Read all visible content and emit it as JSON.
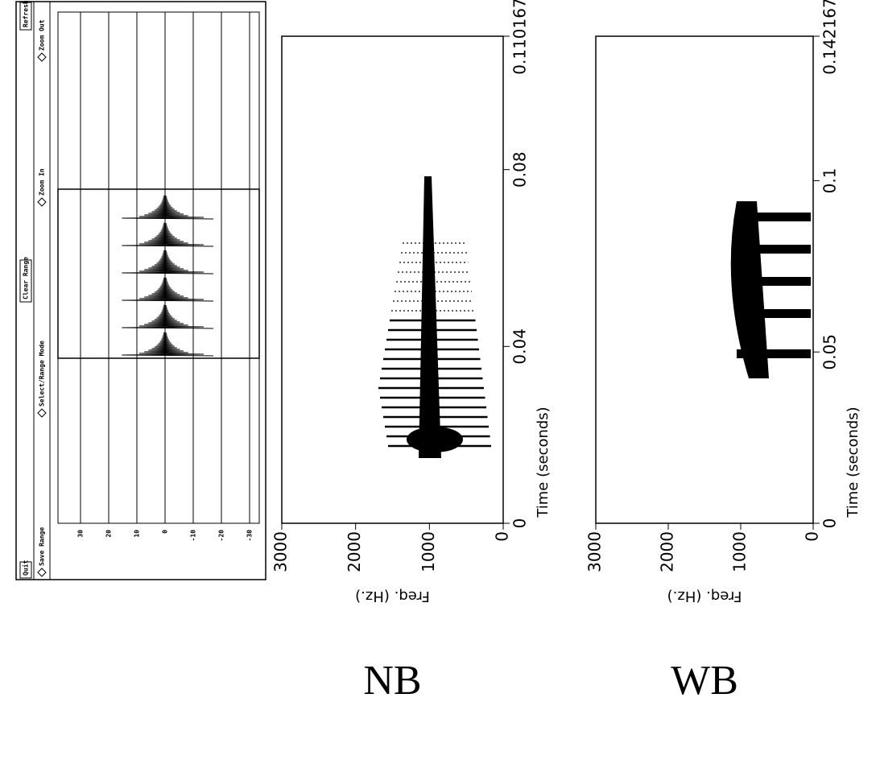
{
  "toolbar": {
    "buttons": [
      "Quit",
      "Clear Range",
      "Refresh"
    ],
    "modes": [
      "Save Range",
      "Select/Range Mode",
      "Zoom In",
      "Zoom Out"
    ]
  },
  "waveform": {
    "ylim": [
      -30,
      30
    ],
    "yticks": [
      30,
      20,
      10,
      0,
      -10,
      -20,
      -30
    ]
  },
  "panels": [
    {
      "label": "NB",
      "ylabel": "Freq. (Hz.)",
      "xlabel": "Time (seconds)",
      "ylim": [
        0,
        3000
      ],
      "yticks": [
        0,
        1000,
        2000,
        3000
      ],
      "xlim": [
        0,
        0.110167
      ],
      "xticks": [
        0,
        0.04,
        0.08,
        0.110167
      ]
    },
    {
      "label": "WB",
      "ylabel": "Freq. (Hz.)",
      "xlabel": "Time (seconds)",
      "ylim": [
        0,
        3000
      ],
      "yticks": [
        0,
        1000,
        2000,
        3000
      ],
      "xlim": [
        0,
        0.142167
      ],
      "xticks": [
        0,
        0.05,
        0.1,
        0.142167
      ]
    }
  ]
}
